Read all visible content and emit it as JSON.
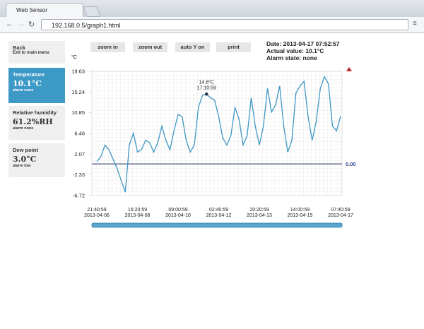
{
  "browser": {
    "tab_title": "Web Sensor",
    "url": "192.168.0.5/graph1.html"
  },
  "sidebar": {
    "back": {
      "title": "Back",
      "subtitle": "Exit to main menu"
    },
    "sensors": [
      {
        "name": "Temperature",
        "value": "10.1°C",
        "alarm": "alarm none"
      },
      {
        "name": "Relative humidity",
        "value": "61.2%RH",
        "alarm": "alarm none"
      },
      {
        "name": "Dew point",
        "value": "3.0°C",
        "alarm": "alarm low"
      }
    ]
  },
  "buttons": [
    "zoom in",
    "zoom out",
    "auto Y on",
    "print"
  ],
  "status": {
    "date": "Date: 2013-04-17 07:52:57",
    "actual": "Actual value: 10.1°C",
    "alarm": "Alarm state: none"
  },
  "chart_data": {
    "type": "line",
    "y_unit": "°C",
    "color": "#3d97c4",
    "categories": [
      "21:40:59\n2013-04-06",
      null,
      null,
      null,
      null,
      null,
      null,
      null,
      null,
      null,
      "15:20:59\n2013-04-08",
      null,
      null,
      null,
      null,
      null,
      null,
      null,
      null,
      null,
      "09:00:59\n2013-04-10",
      null,
      null,
      null,
      null,
      null,
      null,
      null,
      null,
      null,
      "02:40:59\n2013-04-12",
      null,
      null,
      null,
      null,
      null,
      null,
      null,
      null,
      null,
      "20:20:59\n2013-04-13",
      null,
      null,
      null,
      null,
      null,
      null,
      null,
      null,
      null,
      "14:00:59\n2013-04-15",
      null,
      null,
      null,
      null,
      null,
      null,
      null,
      null,
      null,
      "07:40:59\n2013-04-17"
    ],
    "values": [
      0.5,
      1.5,
      4.0,
      3.0,
      1.0,
      -1.0,
      -3.5,
      -6.0,
      4.0,
      6.5,
      2.5,
      3.0,
      5.0,
      4.5,
      2.5,
      4.5,
      8.0,
      5.0,
      3.0,
      7.0,
      10.5,
      10.0,
      5.0,
      2.5,
      4.0,
      12.0,
      14.5,
      14.8,
      14.0,
      13.5,
      10.0,
      5.5,
      4.0,
      6.0,
      12.0,
      9.5,
      4.0,
      6.0,
      14.0,
      8.0,
      4.0,
      8.0,
      16.0,
      11.0,
      12.5,
      16.5,
      8.0,
      2.5,
      5.0,
      15.0,
      16.5,
      17.5,
      10.0,
      5.0,
      9.0,
      16.0,
      18.5,
      17.0,
      8.0,
      7.0,
      10.1
    ],
    "ylim": [
      -6.72,
      19.63
    ],
    "yticks": [
      -6.72,
      -2.33,
      2.07,
      6.46,
      10.85,
      15.24,
      19.63
    ],
    "threshold": {
      "value": 0,
      "label": "0.00"
    },
    "annotation": [
      "14.8°C",
      "17:10:59"
    ]
  }
}
